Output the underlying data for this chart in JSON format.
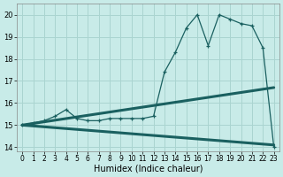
{
  "xlabel": "Humidex (Indice chaleur)",
  "bg_color": "#c8ebe8",
  "grid_color": "#aad4d0",
  "line_color": "#1a6060",
  "xlim": [
    -0.5,
    23.5
  ],
  "ylim": [
    13.8,
    20.5
  ],
  "xticks": [
    0,
    1,
    2,
    3,
    4,
    5,
    6,
    7,
    8,
    9,
    10,
    11,
    12,
    13,
    14,
    15,
    16,
    17,
    18,
    19,
    20,
    21,
    22,
    23
  ],
  "yticks": [
    14,
    15,
    16,
    17,
    18,
    19,
    20
  ],
  "upper_line_x": [
    0,
    23
  ],
  "upper_line_y": [
    15.0,
    16.7
  ],
  "lower_line_x": [
    0,
    23
  ],
  "lower_line_y": [
    15.0,
    14.1
  ],
  "main_x": [
    0,
    1,
    2,
    3,
    4,
    5,
    6,
    7,
    8,
    9,
    10,
    11,
    12,
    13,
    14,
    15,
    16,
    17,
    18,
    19,
    20,
    21,
    22,
    23
  ],
  "main_y": [
    15.0,
    15.1,
    15.2,
    15.4,
    15.7,
    15.3,
    15.2,
    15.2,
    15.3,
    15.3,
    15.3,
    15.3,
    15.4,
    17.4,
    18.3,
    19.4,
    20.0,
    18.6,
    20.0,
    19.8,
    19.6,
    19.5,
    18.5,
    14.0
  ],
  "marker_at": [
    0,
    1,
    2,
    3,
    4,
    5,
    6,
    7,
    8,
    9,
    10,
    11,
    12,
    13,
    14,
    15,
    16,
    17,
    18,
    19,
    20,
    21,
    22,
    23
  ]
}
